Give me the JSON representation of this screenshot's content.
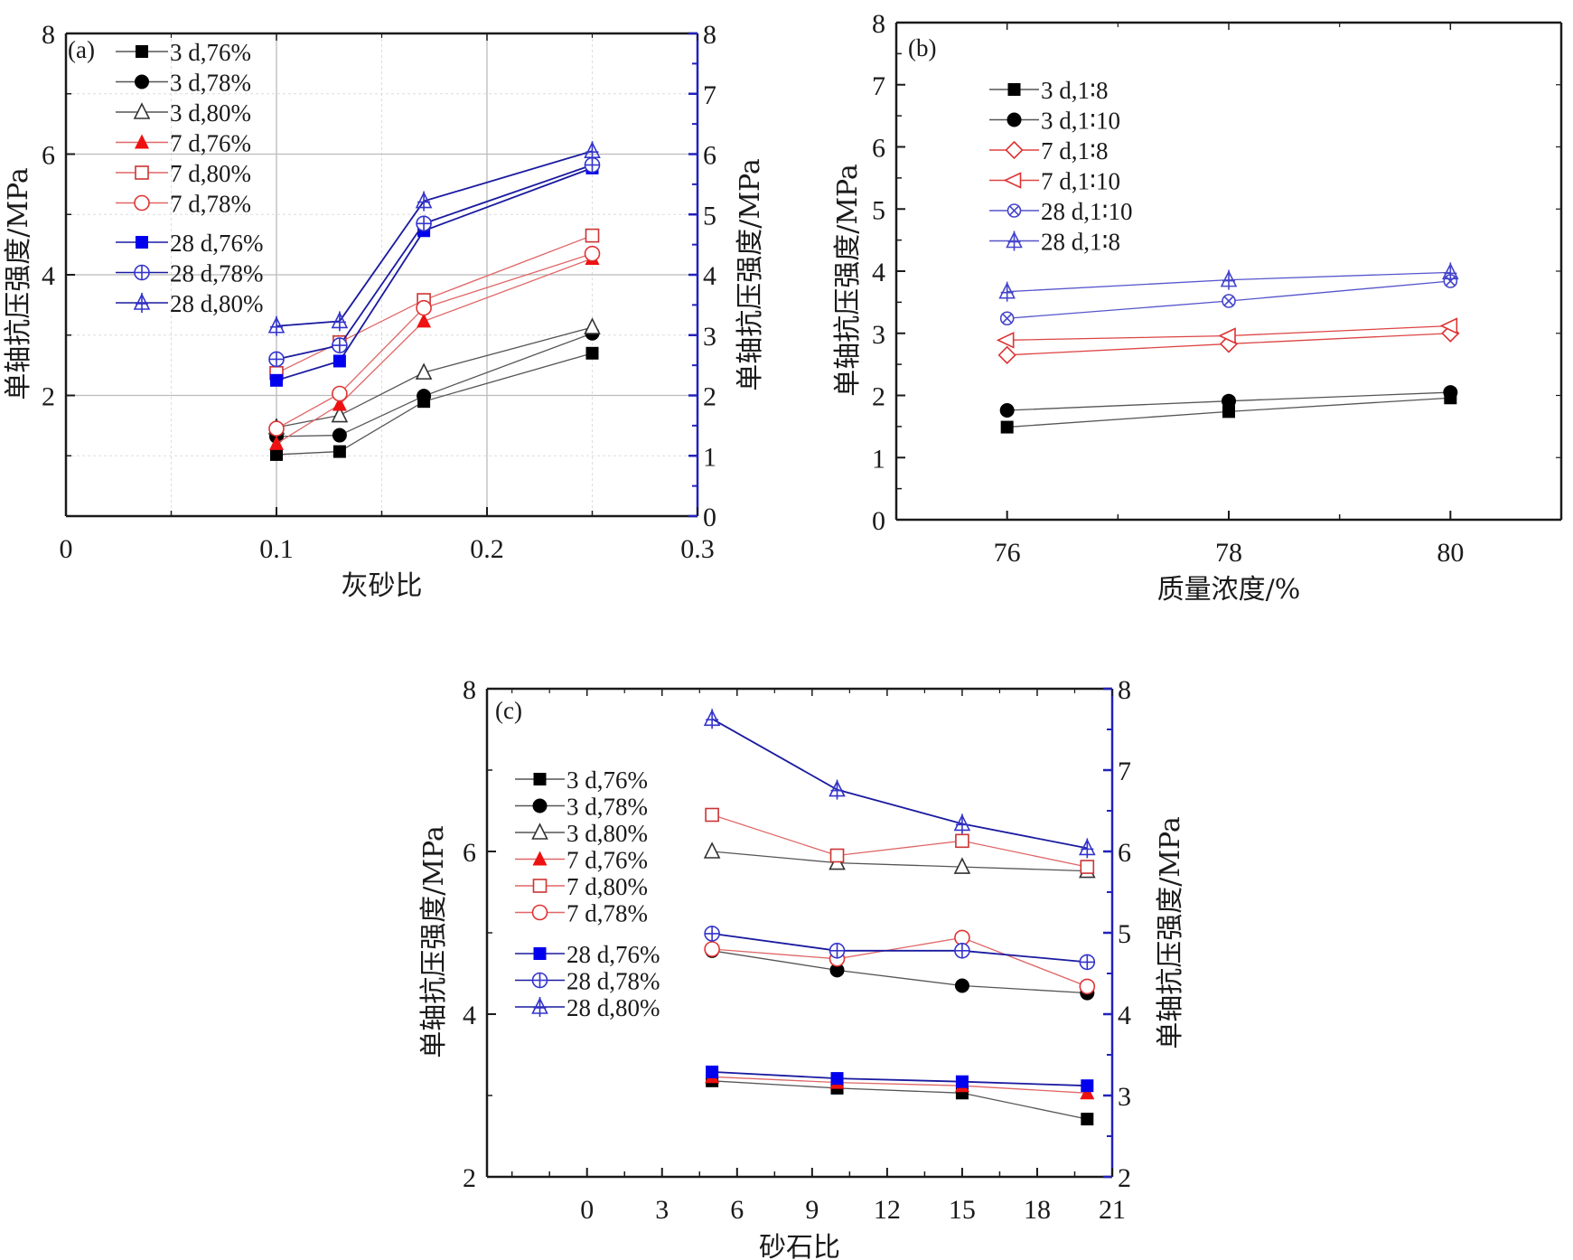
{
  "chart_data": [
    {
      "id": "a",
      "type": "line",
      "panel_label": "(a)",
      "xlabel": "灰砂比",
      "ylabel": "单轴抗压强度/MPa",
      "ylabel_right": "单轴抗压强度/MPa",
      "xlim": [
        0,
        0.3
      ],
      "ylim": [
        0,
        8
      ],
      "ylim_right": [
        0,
        8
      ],
      "xticks": [
        "0",
        "0.1",
        "0.2",
        "0.3"
      ],
      "xtick_values": [
        0,
        0.1,
        0.2,
        0.3
      ],
      "yticks_left": [
        "2",
        "4",
        "6",
        "8"
      ],
      "ytick_values_left": [
        2,
        4,
        6,
        8
      ],
      "yticks_right": [
        "0",
        "1",
        "2",
        "3",
        "4",
        "5",
        "6",
        "7",
        "8"
      ],
      "ytick_values_right": [
        0,
        1,
        2,
        3,
        4,
        5,
        6,
        7,
        8
      ],
      "grid": true,
      "legend_position": "top-left",
      "x": [
        0.1,
        0.13,
        0.17,
        0.25
      ],
      "series": [
        {
          "name": "3 d,76%",
          "marker": "square-filled",
          "color": "#000000",
          "line_color": "#555555",
          "values": [
            1.02,
            1.07,
            1.9,
            2.7
          ]
        },
        {
          "name": "3 d,78%",
          "marker": "circle-filled",
          "color": "#000000",
          "line_color": "#555555",
          "values": [
            1.32,
            1.34,
            1.99,
            3.03
          ]
        },
        {
          "name": "3 d,80%",
          "marker": "triangle-open",
          "color": "#333333",
          "line_color": "#555555",
          "values": [
            1.47,
            1.67,
            2.38,
            3.13
          ]
        },
        {
          "name": "7 d,76%",
          "marker": "triangle-filled",
          "color": "#ee1111",
          "line_color": "#e06666",
          "values": [
            1.2,
            1.85,
            3.23,
            4.27
          ]
        },
        {
          "name": "7 d,80%",
          "marker": "square-open",
          "color": "#cc3333",
          "line_color": "#e06666",
          "values": [
            2.37,
            2.88,
            3.58,
            4.65
          ]
        },
        {
          "name": "7 d,78%",
          "marker": "circle-open",
          "color": "#e03333",
          "line_color": "#e06666",
          "values": [
            1.45,
            2.03,
            3.45,
            4.35
          ]
        },
        {
          "name": "28 d,76%",
          "marker": "square-filled",
          "color": "#0000ee",
          "line_color": "#1a1aa0",
          "values": [
            2.25,
            2.57,
            4.73,
            5.77
          ]
        },
        {
          "name": "28 d,78%",
          "marker": "circle-plus",
          "color": "#3333cc",
          "line_color": "#1a1aa0",
          "values": [
            2.6,
            2.83,
            4.85,
            5.82
          ]
        },
        {
          "name": "28 d,80%",
          "marker": "triangle-plus",
          "color": "#3333cc",
          "line_color": "#1a1aa0",
          "values": [
            3.15,
            3.23,
            5.22,
            6.05
          ]
        }
      ]
    },
    {
      "id": "b",
      "type": "line",
      "panel_label": "(b)",
      "xlabel": "质量浓度/%",
      "ylabel": "单轴抗压强度/MPa",
      "xlim": [
        75,
        81
      ],
      "ylim": [
        0,
        8
      ],
      "xticks": [
        "76",
        "78",
        "80"
      ],
      "xtick_values": [
        76,
        78,
        80
      ],
      "yticks_left": [
        "0",
        "1",
        "2",
        "3",
        "4",
        "5",
        "6",
        "7",
        "8"
      ],
      "ytick_values_left": [
        0,
        1,
        2,
        3,
        4,
        5,
        6,
        7,
        8
      ],
      "grid": false,
      "legend_position": "upper-left",
      "x": [
        76,
        78,
        80
      ],
      "series": [
        {
          "name": "3 d,1∶8",
          "marker": "square-filled",
          "color": "#000000",
          "line_color": "#555555",
          "values": [
            1.49,
            1.74,
            1.96
          ]
        },
        {
          "name": "3 d,1∶10",
          "marker": "circle-filled",
          "color": "#000000",
          "line_color": "#555555",
          "values": [
            1.76,
            1.91,
            2.05
          ]
        },
        {
          "name": "7 d,1∶8",
          "marker": "diamond-open",
          "color": "#dd3333",
          "line_color": "#dd4444",
          "values": [
            2.65,
            2.83,
            3.0
          ]
        },
        {
          "name": "7 d,1∶10",
          "marker": "triangle-left-open",
          "color": "#dd3333",
          "line_color": "#dd4444",
          "values": [
            2.89,
            2.96,
            3.12
          ]
        },
        {
          "name": "28 d,1∶10",
          "marker": "circle-x",
          "color": "#4444cc",
          "line_color": "#5555cc",
          "values": [
            3.24,
            3.52,
            3.84
          ]
        },
        {
          "name": "28 d,1∶8",
          "marker": "triangle-plus",
          "color": "#4444cc",
          "line_color": "#5555cc",
          "values": [
            3.67,
            3.86,
            3.98
          ]
        }
      ]
    },
    {
      "id": "c",
      "type": "line",
      "panel_label": "(c)",
      "xlabel": "砂石比",
      "ylabel": "单轴抗压强度/MPa",
      "ylabel_right": "单轴抗压强度/MPa",
      "xlim": [
        -4,
        21
      ],
      "ylim": [
        2,
        8
      ],
      "ylim_right": [
        2,
        8
      ],
      "xticks": [
        "0",
        "3",
        "6",
        "9",
        "12",
        "15",
        "18",
        "21"
      ],
      "xtick_values": [
        0,
        3,
        6,
        9,
        12,
        15,
        18,
        21
      ],
      "yticks_left": [
        "2",
        "4",
        "6",
        "8"
      ],
      "ytick_values_left": [
        2,
        4,
        6,
        8
      ],
      "yticks_right": [
        "2",
        "3",
        "4",
        "5",
        "6",
        "7",
        "8"
      ],
      "ytick_values_right": [
        2,
        3,
        4,
        5,
        6,
        7,
        8
      ],
      "grid": false,
      "legend_position": "left",
      "x": [
        5,
        10,
        15,
        20
      ],
      "series": [
        {
          "name": "3 d,76%",
          "marker": "square-filled",
          "color": "#000000",
          "line_color": "#555555",
          "values": [
            3.18,
            3.09,
            3.03,
            2.71
          ]
        },
        {
          "name": "3 d,78%",
          "marker": "circle-filled",
          "color": "#000000",
          "line_color": "#555555",
          "values": [
            4.78,
            4.54,
            4.35,
            4.26
          ]
        },
        {
          "name": "3 d,80%",
          "marker": "triangle-open",
          "color": "#333333",
          "line_color": "#555555",
          "values": [
            6.0,
            5.86,
            5.81,
            5.76
          ]
        },
        {
          "name": "7 d,76%",
          "marker": "triangle-filled",
          "color": "#ee1111",
          "line_color": "#e06666",
          "values": [
            3.23,
            3.16,
            3.12,
            3.03
          ]
        },
        {
          "name": "7 d,80%",
          "marker": "square-open",
          "color": "#cc3333",
          "line_color": "#e06666",
          "values": [
            6.45,
            5.95,
            6.13,
            5.81
          ]
        },
        {
          "name": "7 d,78%",
          "marker": "circle-open",
          "color": "#e03333",
          "line_color": "#e06666",
          "values": [
            4.8,
            4.68,
            4.94,
            4.34
          ]
        },
        {
          "name": "28 d,76%",
          "marker": "square-filled",
          "color": "#0000ee",
          "line_color": "#1a1aa0",
          "values": [
            3.29,
            3.21,
            3.17,
            3.12
          ]
        },
        {
          "name": "28 d,78%",
          "marker": "circle-plus",
          "color": "#3333cc",
          "line_color": "#1a1aa0",
          "values": [
            4.99,
            4.78,
            4.78,
            4.64
          ]
        },
        {
          "name": "28 d,80%",
          "marker": "triangle-plus",
          "color": "#3333cc",
          "line_color": "#1a1aa0",
          "values": [
            7.63,
            6.76,
            6.34,
            6.04
          ]
        }
      ]
    }
  ],
  "colors": {
    "right_axis": "#2222bb",
    "axis": "#1a1a1a",
    "grid_major": "#bbbbbb",
    "grid_minor": "#dddddd"
  }
}
